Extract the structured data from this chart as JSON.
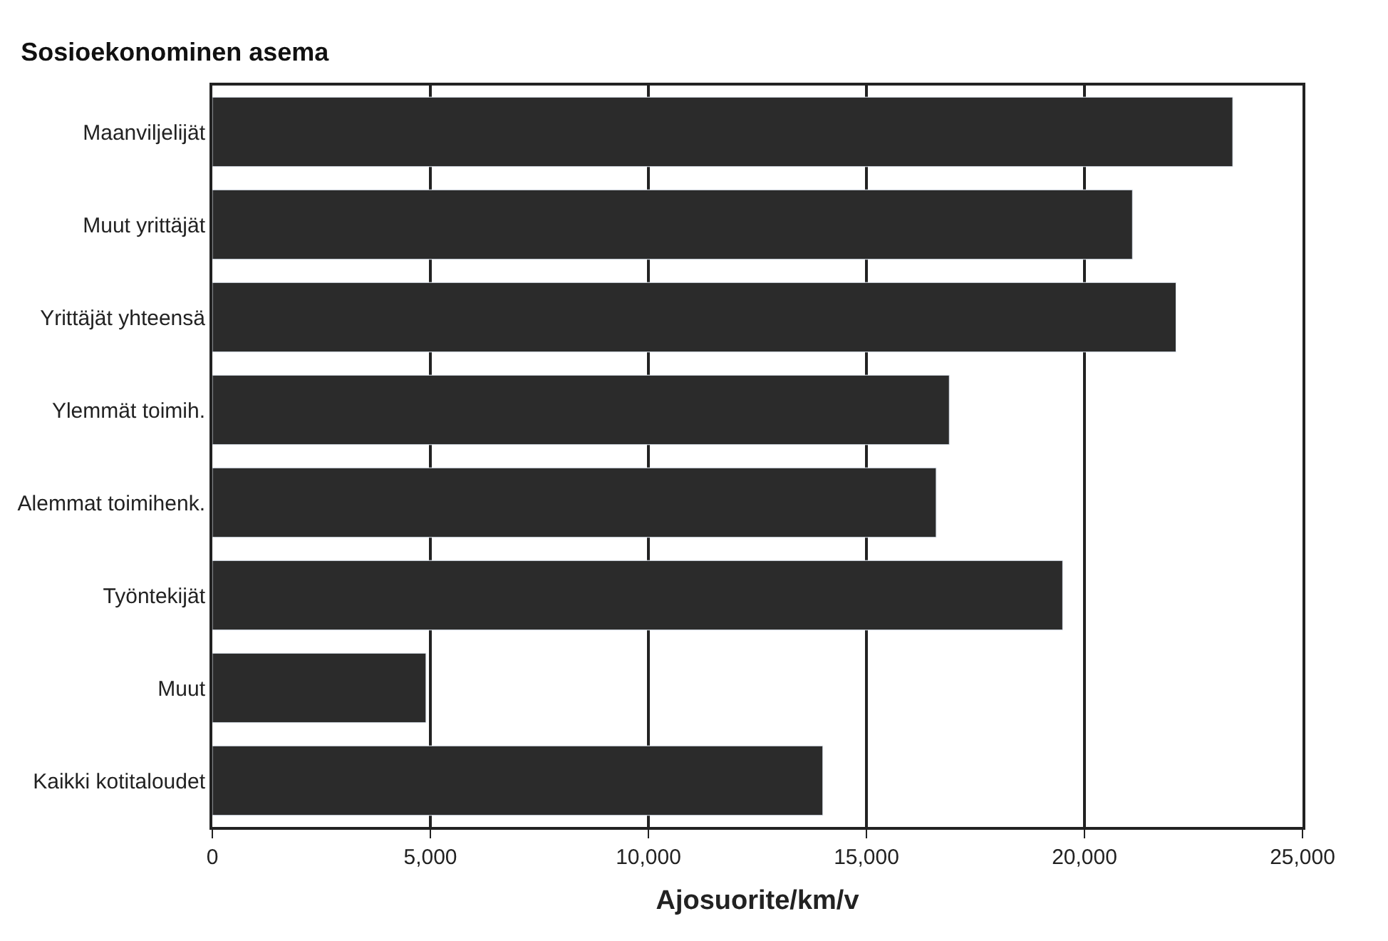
{
  "chart_data": {
    "type": "bar",
    "orientation": "horizontal",
    "title": "Sosioekonominen asema",
    "xlabel": "Ajosuorite/km/v",
    "categories": [
      "Maanviljelijät",
      "Muut yrittäjät",
      "Yrittäjät yhteensä",
      "Ylemmät toimih.",
      "Alemmat toimihenk.",
      "Työntekijät",
      "Muut",
      "Kaikki kotitaloudet"
    ],
    "values": [
      23400,
      21100,
      22100,
      16900,
      16600,
      19500,
      4900,
      14000
    ],
    "color": "#2b2b2b",
    "xlim": [
      0,
      25000
    ],
    "xticks": [
      {
        "value": 0,
        "label": "0"
      },
      {
        "value": 5000,
        "label": "5,000"
      },
      {
        "value": 10000,
        "label": "10,000"
      },
      {
        "value": 15000,
        "label": "15,000"
      },
      {
        "value": 20000,
        "label": "20,000"
      },
      {
        "value": 25000,
        "label": "25,000"
      }
    ],
    "grid": "x",
    "legend": false
  }
}
